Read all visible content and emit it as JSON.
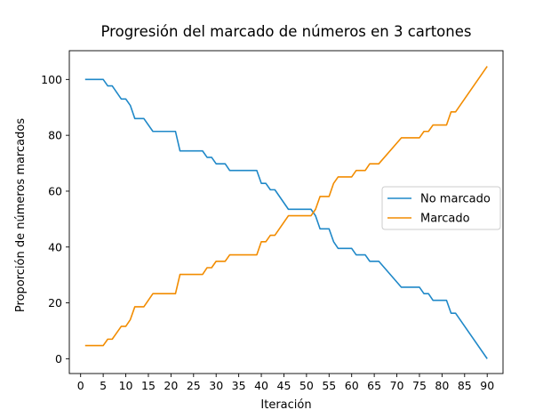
{
  "chart_data": {
    "type": "line",
    "title": "Progresión del marcado de números en 3 cartones",
    "xlabel": "Iteración",
    "ylabel": "Proporción de números marcados",
    "xlim": [
      -2.5,
      93.5
    ],
    "ylim": [
      -5.3,
      110.3
    ],
    "xticks": [
      0,
      5,
      10,
      15,
      20,
      25,
      30,
      35,
      40,
      45,
      50,
      55,
      60,
      65,
      70,
      75,
      80,
      85,
      90
    ],
    "yticks": [
      0,
      20,
      40,
      60,
      80,
      100
    ],
    "grid": false,
    "legend_position": "center-right",
    "series": [
      {
        "name": "No marcado",
        "color": "#1f88c8",
        "points": [
          [
            1,
            100
          ],
          [
            5,
            100
          ],
          [
            6,
            97.7
          ],
          [
            7,
            97.7
          ],
          [
            9,
            93
          ],
          [
            10,
            93
          ],
          [
            11,
            90.7
          ],
          [
            12,
            86
          ],
          [
            14,
            86
          ],
          [
            16,
            81.4
          ],
          [
            21,
            81.4
          ],
          [
            22,
            74.4
          ],
          [
            27,
            74.4
          ],
          [
            28,
            72.1
          ],
          [
            29,
            72.1
          ],
          [
            30,
            69.8
          ],
          [
            32,
            69.8
          ],
          [
            33,
            67.4
          ],
          [
            39,
            67.4
          ],
          [
            40,
            62.8
          ],
          [
            41,
            62.8
          ],
          [
            42,
            60.5
          ],
          [
            43,
            60.5
          ],
          [
            46,
            53.5
          ],
          [
            51,
            53.5
          ],
          [
            52,
            51.2
          ],
          [
            53,
            46.5
          ],
          [
            55,
            46.5
          ],
          [
            56,
            41.9
          ],
          [
            57,
            39.5
          ],
          [
            60,
            39.5
          ],
          [
            61,
            37.2
          ],
          [
            63,
            37.2
          ],
          [
            64,
            34.9
          ],
          [
            66,
            34.9
          ],
          [
            71,
            25.6
          ],
          [
            75,
            25.6
          ],
          [
            76,
            23.3
          ],
          [
            77,
            23.3
          ],
          [
            78,
            20.9
          ],
          [
            81,
            20.9
          ],
          [
            82,
            16.3
          ],
          [
            83,
            16.3
          ],
          [
            90,
            0
          ]
        ]
      },
      {
        "name": "Marcado",
        "color": "#f28c00",
        "points": [
          [
            1,
            4.7
          ],
          [
            5,
            4.7
          ],
          [
            6,
            7
          ],
          [
            7,
            7
          ],
          [
            9,
            11.6
          ],
          [
            10,
            11.6
          ],
          [
            11,
            14
          ],
          [
            12,
            18.6
          ],
          [
            14,
            18.6
          ],
          [
            16,
            23.3
          ],
          [
            21,
            23.3
          ],
          [
            22,
            30.2
          ],
          [
            27,
            30.2
          ],
          [
            28,
            32.6
          ],
          [
            29,
            32.6
          ],
          [
            30,
            34.9
          ],
          [
            32,
            34.9
          ],
          [
            33,
            37.2
          ],
          [
            39,
            37.2
          ],
          [
            40,
            41.9
          ],
          [
            41,
            41.9
          ],
          [
            42,
            44.2
          ],
          [
            43,
            44.2
          ],
          [
            46,
            51.2
          ],
          [
            51,
            51.2
          ],
          [
            52,
            53.5
          ],
          [
            53,
            58.1
          ],
          [
            55,
            58.1
          ],
          [
            56,
            62.8
          ],
          [
            57,
            65.1
          ],
          [
            60,
            65.1
          ],
          [
            61,
            67.4
          ],
          [
            63,
            67.4
          ],
          [
            64,
            69.8
          ],
          [
            66,
            69.8
          ],
          [
            71,
            79.1
          ],
          [
            75,
            79.1
          ],
          [
            76,
            81.4
          ],
          [
            77,
            81.4
          ],
          [
            78,
            83.7
          ],
          [
            81,
            83.7
          ],
          [
            82,
            88.4
          ],
          [
            83,
            88.4
          ],
          [
            90,
            104.7
          ]
        ]
      }
    ]
  }
}
